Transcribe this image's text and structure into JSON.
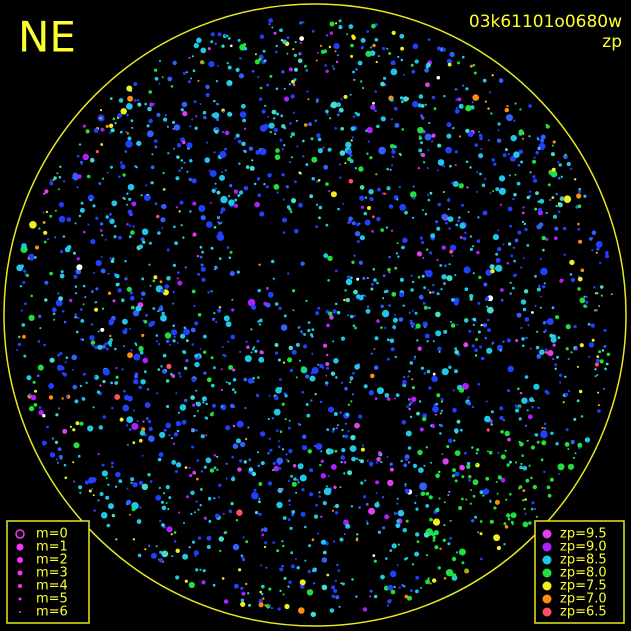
{
  "header": {
    "direction": "NE",
    "image_id": "03k61101o0680w",
    "mode": "zp"
  },
  "magnitude_legend": {
    "items": [
      "m=0",
      "m=1",
      "m=2",
      "m=3",
      "m=4",
      "m=5",
      "m=6"
    ]
  },
  "zp_legend": {
    "items": [
      {
        "label": "zp=9.5",
        "color": "#e040f0"
      },
      {
        "label": "zp=9.0",
        "color": "#b020ff"
      },
      {
        "label": "zp=8.5",
        "color": "#20c8e8"
      },
      {
        "label": "zp=8.0",
        "color": "#20e040"
      },
      {
        "label": "zp=7.5",
        "color": "#f0f020"
      },
      {
        "label": "zp=7.0",
        "color": "#ff8c10"
      },
      {
        "label": "zp=6.5",
        "color": "#ff5060"
      }
    ]
  }
}
